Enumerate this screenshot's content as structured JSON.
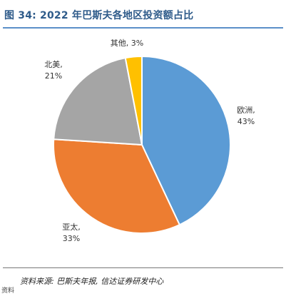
{
  "header": {
    "title": "图 34:  2022 年巴斯夫各地区投资额占比"
  },
  "footer": {
    "source": "资料来源: 巴斯夫年报, 信达证券研发中心",
    "corner_mark": "资料"
  },
  "chart_data": {
    "type": "pie",
    "title": "",
    "slices": [
      {
        "label": "欧洲,",
        "pct": "43%",
        "value": 43,
        "color": "#5b9bd5"
      },
      {
        "label": "亚太,",
        "pct": "33%",
        "value": 33,
        "color": "#ed7d31"
      },
      {
        "label": "北美,",
        "pct": "21%",
        "value": 21,
        "color": "#a5a5a5"
      },
      {
        "label": "其他,",
        "pct": "3%",
        "value": 3,
        "color": "#ffc000"
      }
    ]
  }
}
